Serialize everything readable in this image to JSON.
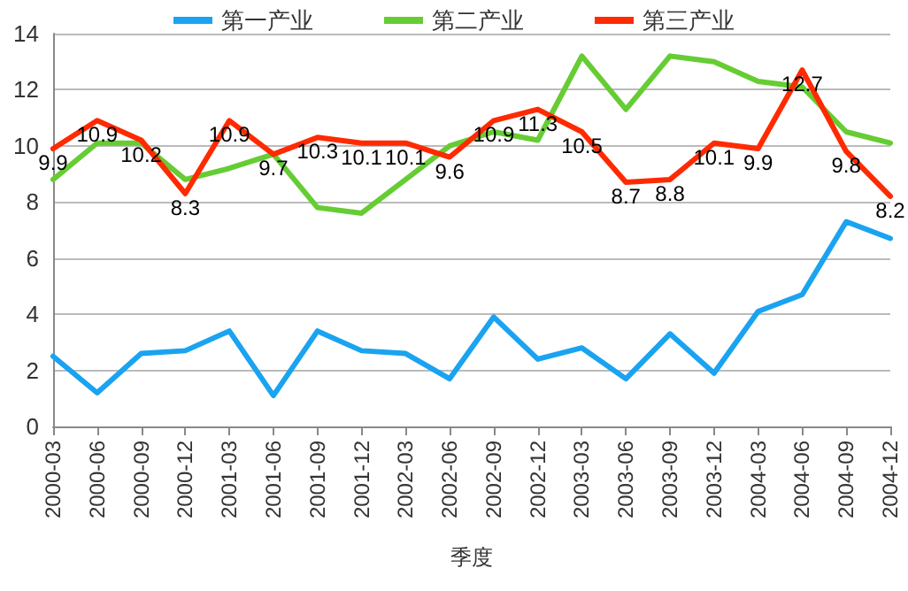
{
  "chart_data": {
    "type": "line",
    "xlabel": "季度",
    "categories": [
      "2000-03",
      "2000-06",
      "2000-09",
      "2000-12",
      "2001-03",
      "2001-06",
      "2001-09",
      "2001-12",
      "2002-03",
      "2002-06",
      "2002-09",
      "2002-12",
      "2003-03",
      "2003-06",
      "2003-09",
      "2003-12",
      "2004-03",
      "2004-06",
      "2004-09",
      "2004-12"
    ],
    "series": [
      {
        "name": "第一产业",
        "color": "#1aa3f0",
        "values": [
          2.5,
          1.2,
          2.6,
          2.7,
          3.4,
          1.1,
          3.4,
          2.7,
          2.6,
          1.7,
          3.9,
          2.4,
          2.8,
          1.7,
          3.3,
          1.9,
          4.1,
          4.7,
          7.3,
          6.7
        ]
      },
      {
        "name": "第二产业",
        "color": "#66cc33",
        "values": [
          8.8,
          10.1,
          10.1,
          8.8,
          9.2,
          9.7,
          7.8,
          7.6,
          8.8,
          10.0,
          10.5,
          10.2,
          13.2,
          11.3,
          13.2,
          13.0,
          12.3,
          12.1,
          10.5,
          10.1
        ]
      },
      {
        "name": "第三产业",
        "color": "#ff2a00",
        "values": [
          9.9,
          10.9,
          10.2,
          8.3,
          10.9,
          9.7,
          10.3,
          10.1,
          10.1,
          9.6,
          10.9,
          11.3,
          10.5,
          8.7,
          8.8,
          10.1,
          9.9,
          12.7,
          9.8,
          8.2
        ],
        "value_labels": [
          "9.9",
          "10.9",
          "10.2",
          "8.3",
          "10.9",
          "9.7",
          "10.3",
          "10.1",
          "10.1",
          "9.6",
          "10.9",
          "11.3",
          "10.5",
          "8.7",
          "8.8",
          "10.1",
          "9.9",
          "12.7",
          "9.8",
          "8.2"
        ]
      }
    ],
    "ylim": [
      0,
      14
    ],
    "yticks": [
      0,
      2,
      4,
      6,
      8,
      10,
      12,
      14
    ],
    "grid": "y",
    "legend": "top",
    "marker": "none",
    "line_style": "solid"
  }
}
